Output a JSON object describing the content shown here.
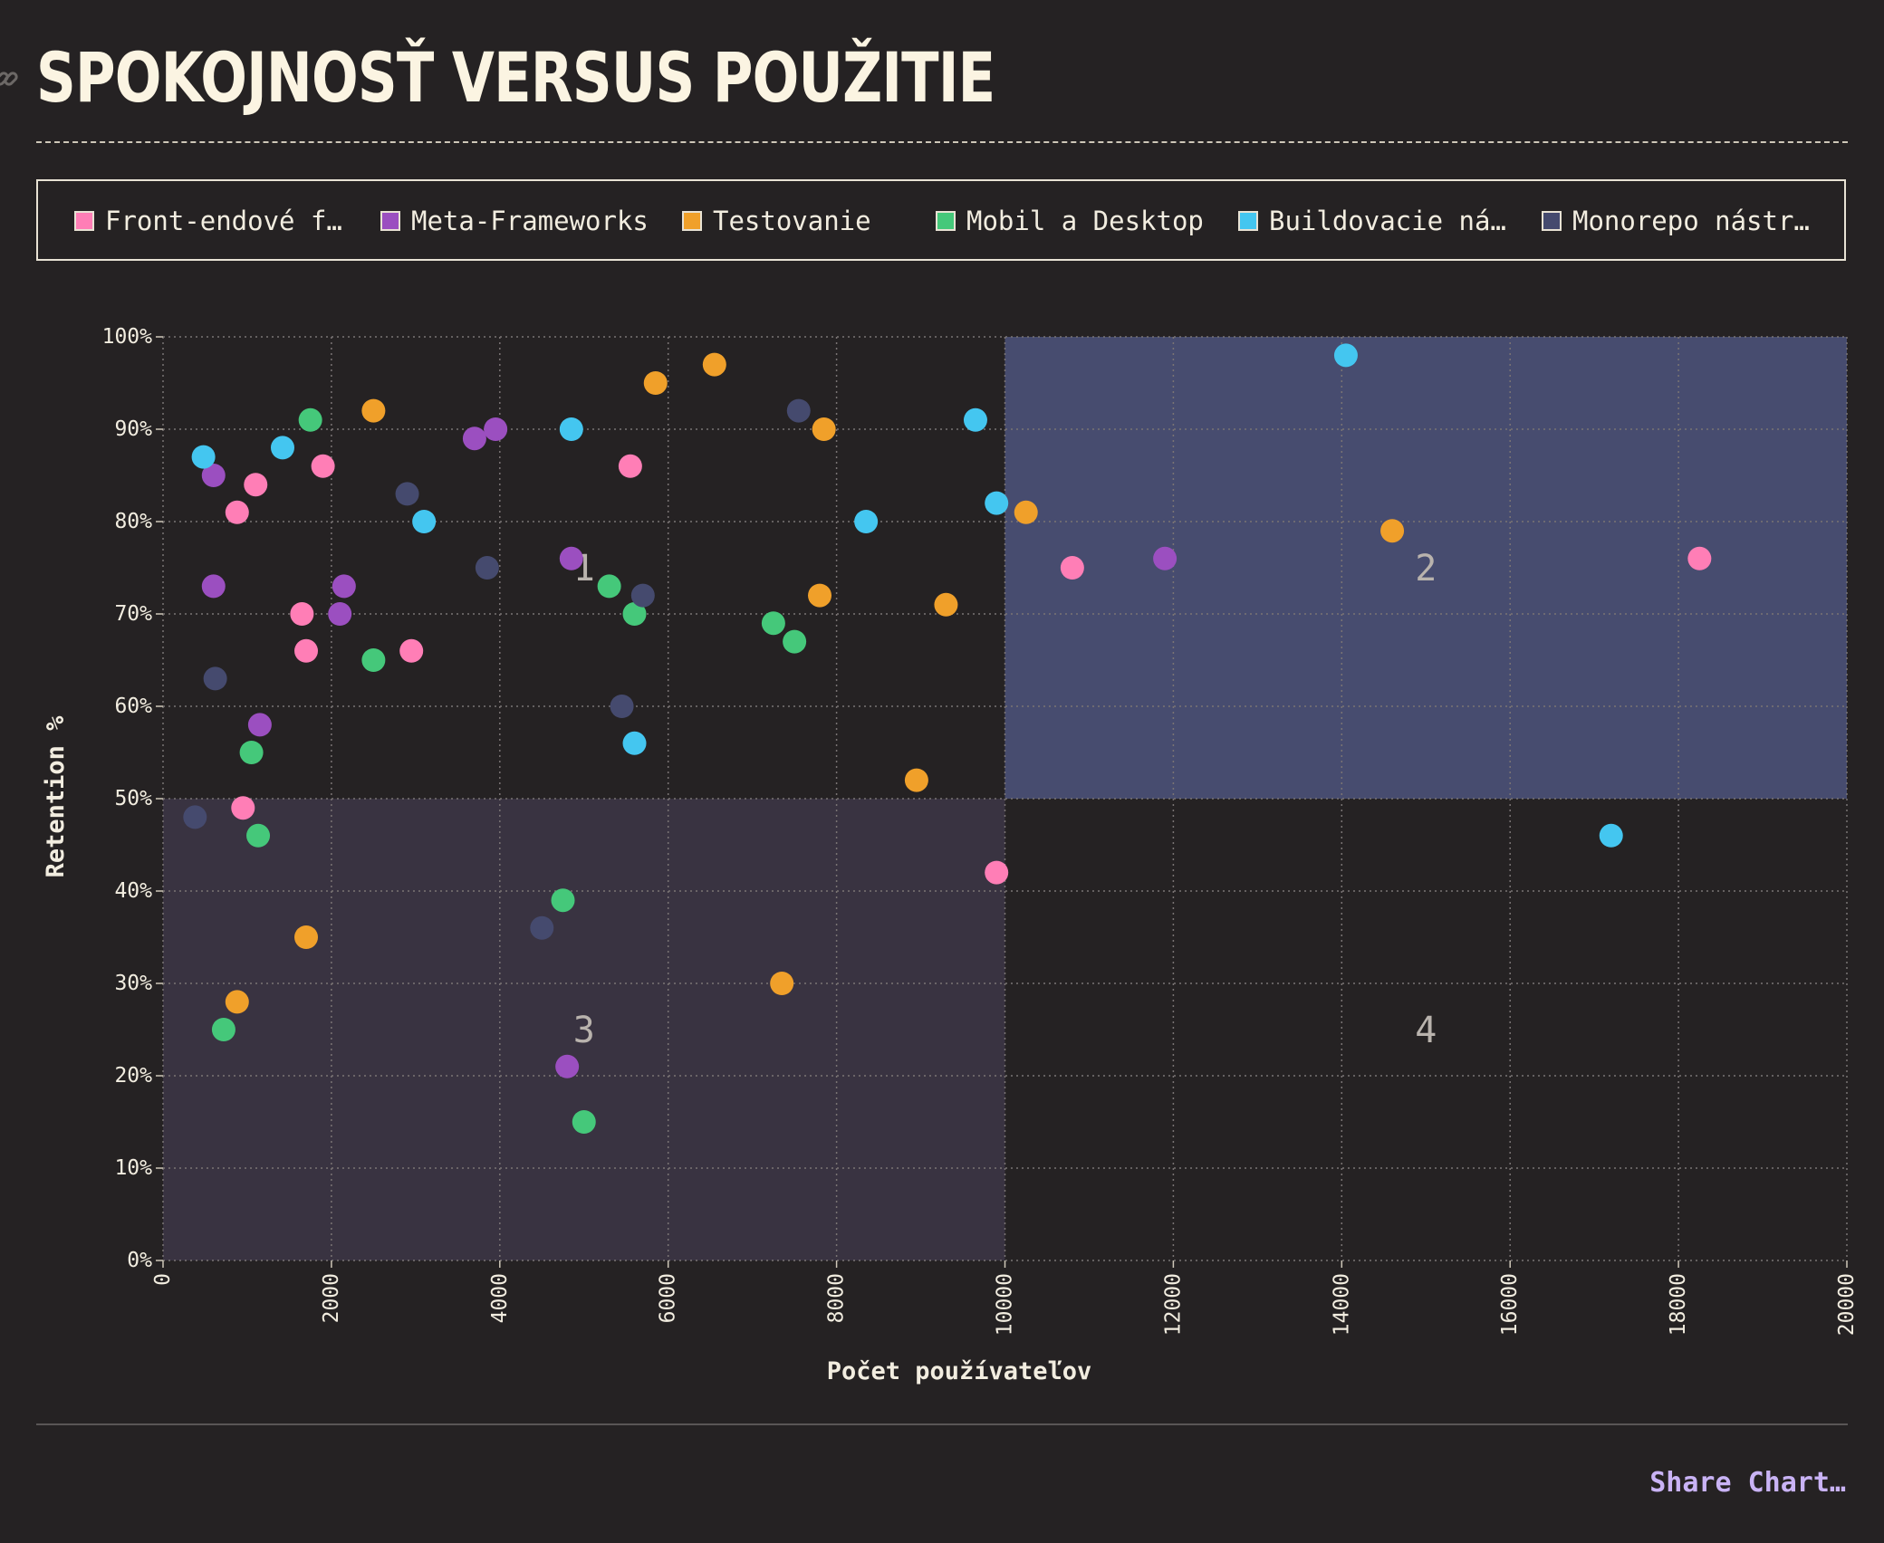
{
  "title": "SPOKOJNOSŤ VERSUS POUŽITIE",
  "share_label": "Share Chart…",
  "legend": [
    {
      "label": "Front-endové f…",
      "color": "#ff7eb6"
    },
    {
      "label": "Meta-Frameworks",
      "color": "#9b4fc0"
    },
    {
      "label": "Testovanie",
      "color": "#f0a02a"
    },
    {
      "label": "Mobil a Desktop",
      "color": "#45c87a"
    },
    {
      "label": "Buildovacie ná…",
      "color": "#44c6f0"
    },
    {
      "label": "Monorepo nástr…",
      "color": "#454a6e"
    }
  ],
  "chart_data": {
    "type": "scatter",
    "title": "SPOKOJNOSŤ VERSUS POUŽITIE",
    "xlabel": "Počet používateľov",
    "ylabel": "Retention %",
    "xlim": [
      0,
      20000
    ],
    "ylim": [
      0,
      100
    ],
    "x_ticks": [
      "0",
      "2000",
      "4000",
      "6000",
      "8000",
      "10000",
      "12000",
      "14000",
      "16000",
      "18000",
      "20000"
    ],
    "y_ticks": [
      "0%",
      "10%",
      "20%",
      "30%",
      "40%",
      "50%",
      "60%",
      "70%",
      "80%",
      "90%",
      "100%"
    ],
    "grid": true,
    "legend_position": "top",
    "quadrants": [
      {
        "label": "1",
        "x": [
          0,
          10000
        ],
        "y": [
          50,
          100
        ],
        "shaded": false
      },
      {
        "label": "2",
        "x": [
          10000,
          20000
        ],
        "y": [
          50,
          100
        ],
        "shaded": true,
        "color": "#474c6f"
      },
      {
        "label": "3",
        "x": [
          0,
          10000
        ],
        "y": [
          0,
          50
        ],
        "shaded": true,
        "color": "#393341"
      },
      {
        "label": "4",
        "x": [
          10000,
          20000
        ],
        "y": [
          0,
          50
        ],
        "shaded": false
      }
    ],
    "series": [
      {
        "name": "Front-endové f…",
        "color": "#ff7eb6",
        "points": [
          [
            1100,
            84
          ],
          [
            880,
            81
          ],
          [
            1900,
            86
          ],
          [
            1650,
            70
          ],
          [
            1700,
            66
          ],
          [
            950,
            49
          ],
          [
            2950,
            66
          ],
          [
            5550,
            86
          ],
          [
            10800,
            75
          ],
          [
            9900,
            42
          ],
          [
            18250,
            76
          ]
        ]
      },
      {
        "name": "Meta-Frameworks",
        "color": "#9b4fc0",
        "points": [
          [
            600,
            85
          ],
          [
            600,
            73
          ],
          [
            1150,
            58
          ],
          [
            2150,
            73
          ],
          [
            2100,
            70
          ],
          [
            3700,
            89
          ],
          [
            3950,
            90
          ],
          [
            4850,
            76
          ],
          [
            4800,
            21
          ],
          [
            11900,
            76
          ]
        ]
      },
      {
        "name": "Testovanie",
        "color": "#f0a02a",
        "points": [
          [
            2500,
            92
          ],
          [
            5850,
            95
          ],
          [
            6550,
            97
          ],
          [
            7850,
            90
          ],
          [
            7800,
            72
          ],
          [
            9300,
            71
          ],
          [
            10250,
            81
          ],
          [
            14600,
            79
          ],
          [
            8950,
            52
          ],
          [
            7350,
            30
          ],
          [
            1700,
            35
          ],
          [
            880,
            28
          ]
        ]
      },
      {
        "name": "Mobil a Desktop",
        "color": "#45c87a",
        "points": [
          [
            1750,
            91
          ],
          [
            2500,
            65
          ],
          [
            1050,
            55
          ],
          [
            1130,
            46
          ],
          [
            5300,
            73
          ],
          [
            5600,
            70
          ],
          [
            7250,
            69
          ],
          [
            7500,
            67
          ],
          [
            4750,
            39
          ],
          [
            5000,
            15
          ],
          [
            720,
            25
          ]
        ]
      },
      {
        "name": "Buildovacie ná…",
        "color": "#44c6f0",
        "points": [
          [
            480,
            87
          ],
          [
            1420,
            88
          ],
          [
            3100,
            80
          ],
          [
            4850,
            90
          ],
          [
            5600,
            56
          ],
          [
            8350,
            80
          ],
          [
            9650,
            91
          ],
          [
            9900,
            82
          ],
          [
            14050,
            98
          ],
          [
            17200,
            46
          ]
        ]
      },
      {
        "name": "Monorepo nástr…",
        "color": "#454a6e",
        "points": [
          [
            620,
            63
          ],
          [
            380,
            48
          ],
          [
            2900,
            83
          ],
          [
            3850,
            75
          ],
          [
            5700,
            72
          ],
          [
            5450,
            60
          ],
          [
            7550,
            92
          ],
          [
            4500,
            36
          ]
        ]
      }
    ]
  }
}
